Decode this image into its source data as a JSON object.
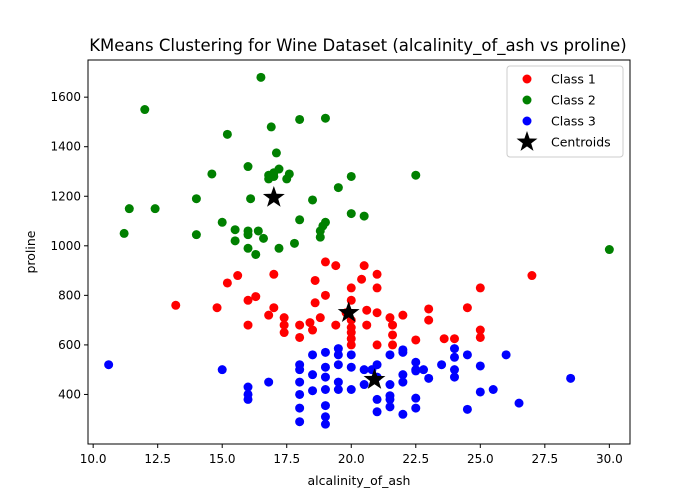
{
  "chart_data": {
    "type": "scatter",
    "title": "KMeans Clustering for Wine Dataset (alcalinity_of_ash vs proline)",
    "xlabel": "alcalinity_of_ash",
    "ylabel": "proline",
    "xlim": [
      9.8,
      30.8
    ],
    "ylim": [
      200,
      1750
    ],
    "xticks": [
      "10.0",
      "12.5",
      "15.0",
      "17.5",
      "20.0",
      "22.5",
      "25.0",
      "27.5",
      "30.0"
    ],
    "yticks": [
      "400",
      "600",
      "800",
      "1000",
      "1200",
      "1400",
      "1600"
    ],
    "grid": false,
    "legend_position": "top-right",
    "series": [
      {
        "name": "Class 1",
        "color": "#ff0000",
        "points": [
          [
            13.2,
            760
          ],
          [
            14.8,
            750
          ],
          [
            15.2,
            850
          ],
          [
            15.6,
            880
          ],
          [
            16.0,
            780
          ],
          [
            16.0,
            680
          ],
          [
            16.3,
            795
          ],
          [
            16.8,
            720
          ],
          [
            17.0,
            885
          ],
          [
            17.0,
            750
          ],
          [
            17.4,
            710
          ],
          [
            17.4,
            680
          ],
          [
            17.4,
            650
          ],
          [
            18.0,
            680
          ],
          [
            18.0,
            630
          ],
          [
            18.4,
            690
          ],
          [
            18.5,
            660
          ],
          [
            18.6,
            860
          ],
          [
            18.6,
            770
          ],
          [
            18.8,
            710
          ],
          [
            19.0,
            935
          ],
          [
            19.0,
            800
          ],
          [
            19.4,
            920
          ],
          [
            19.4,
            680
          ],
          [
            19.8,
            730
          ],
          [
            20.0,
            830
          ],
          [
            20.0,
            780
          ],
          [
            20.0,
            700
          ],
          [
            20.0,
            670
          ],
          [
            20.0,
            650
          ],
          [
            20.0,
            625
          ],
          [
            20.0,
            600
          ],
          [
            20.4,
            865
          ],
          [
            20.5,
            920
          ],
          [
            20.6,
            740
          ],
          [
            20.6,
            680
          ],
          [
            21.0,
            885
          ],
          [
            21.0,
            830
          ],
          [
            21.0,
            730
          ],
          [
            21.0,
            600
          ],
          [
            21.5,
            710
          ],
          [
            21.6,
            680
          ],
          [
            21.6,
            640
          ],
          [
            21.6,
            600
          ],
          [
            22.0,
            720
          ],
          [
            22.5,
            620
          ],
          [
            23.0,
            745
          ],
          [
            23.0,
            700
          ],
          [
            23.6,
            625
          ],
          [
            24.0,
            625
          ],
          [
            24.5,
            750
          ],
          [
            25.0,
            830
          ],
          [
            25.0,
            660
          ],
          [
            25.0,
            630
          ],
          [
            27.0,
            880
          ]
        ]
      },
      {
        "name": "Class 2",
        "color": "#008000",
        "points": [
          [
            11.2,
            1050
          ],
          [
            11.4,
            1150
          ],
          [
            12.0,
            1550
          ],
          [
            12.4,
            1150
          ],
          [
            14.0,
            1190
          ],
          [
            14.0,
            1045
          ],
          [
            14.6,
            1290
          ],
          [
            15.0,
            1095
          ],
          [
            15.2,
            1450
          ],
          [
            15.5,
            1065
          ],
          [
            15.5,
            1020
          ],
          [
            16.0,
            1320
          ],
          [
            16.0,
            1060
          ],
          [
            16.0,
            1045
          ],
          [
            16.0,
            990
          ],
          [
            16.1,
            1190
          ],
          [
            16.3,
            965
          ],
          [
            16.4,
            1060
          ],
          [
            16.5,
            1680
          ],
          [
            16.6,
            1030
          ],
          [
            16.8,
            1285
          ],
          [
            16.8,
            1270
          ],
          [
            16.9,
            1480
          ],
          [
            17.0,
            1295
          ],
          [
            17.0,
            1280
          ],
          [
            17.1,
            1375
          ],
          [
            17.2,
            1310
          ],
          [
            17.2,
            990
          ],
          [
            17.5,
            1270
          ],
          [
            17.6,
            1290
          ],
          [
            17.8,
            1010
          ],
          [
            18.0,
            1510
          ],
          [
            18.0,
            1105
          ],
          [
            18.5,
            1185
          ],
          [
            18.8,
            1035
          ],
          [
            18.8,
            1060
          ],
          [
            18.9,
            1080
          ],
          [
            19.0,
            1515
          ],
          [
            19.0,
            1095
          ],
          [
            19.5,
            1235
          ],
          [
            20.0,
            1280
          ],
          [
            20.0,
            1130
          ],
          [
            20.5,
            1120
          ],
          [
            22.5,
            1285
          ],
          [
            30.0,
            985
          ]
        ]
      },
      {
        "name": "Class 3",
        "color": "#0000ff",
        "points": [
          [
            10.6,
            520
          ],
          [
            15.0,
            500
          ],
          [
            16.0,
            430
          ],
          [
            16.0,
            400
          ],
          [
            16.0,
            380
          ],
          [
            16.8,
            450
          ],
          [
            18.0,
            520
          ],
          [
            18.0,
            500
          ],
          [
            18.0,
            450
          ],
          [
            18.0,
            400
          ],
          [
            18.0,
            345
          ],
          [
            18.0,
            290
          ],
          [
            18.5,
            560
          ],
          [
            18.5,
            480
          ],
          [
            18.5,
            415
          ],
          [
            19.0,
            570
          ],
          [
            19.0,
            510
          ],
          [
            19.0,
            470
          ],
          [
            19.0,
            420
          ],
          [
            19.0,
            355
          ],
          [
            19.0,
            310
          ],
          [
            19.0,
            280
          ],
          [
            19.5,
            585
          ],
          [
            19.5,
            560
          ],
          [
            19.5,
            520
          ],
          [
            19.5,
            450
          ],
          [
            19.5,
            420
          ],
          [
            20.0,
            560
          ],
          [
            20.0,
            510
          ],
          [
            20.0,
            420
          ],
          [
            20.5,
            500
          ],
          [
            20.5,
            440
          ],
          [
            20.8,
            500
          ],
          [
            21.0,
            520
          ],
          [
            21.0,
            470
          ],
          [
            21.0,
            380
          ],
          [
            21.0,
            330
          ],
          [
            21.5,
            560
          ],
          [
            21.5,
            440
          ],
          [
            21.5,
            395
          ],
          [
            21.5,
            380
          ],
          [
            21.5,
            350
          ],
          [
            22.0,
            580
          ],
          [
            22.0,
            570
          ],
          [
            22.0,
            480
          ],
          [
            22.0,
            450
          ],
          [
            22.0,
            320
          ],
          [
            22.5,
            530
          ],
          [
            22.5,
            500
          ],
          [
            22.5,
            495
          ],
          [
            22.5,
            385
          ],
          [
            22.5,
            345
          ],
          [
            22.8,
            500
          ],
          [
            23.0,
            465
          ],
          [
            23.5,
            520
          ],
          [
            24.0,
            585
          ],
          [
            24.0,
            550
          ],
          [
            24.0,
            500
          ],
          [
            24.0,
            470
          ],
          [
            24.5,
            560
          ],
          [
            24.5,
            340
          ],
          [
            25.0,
            515
          ],
          [
            25.0,
            410
          ],
          [
            25.5,
            420
          ],
          [
            26.0,
            560
          ],
          [
            26.5,
            365
          ],
          [
            28.5,
            465
          ]
        ]
      }
    ],
    "centroids": {
      "name": "Centroids",
      "color": "#000000",
      "points": [
        [
          17.0,
          1195
        ],
        [
          19.9,
          730
        ],
        [
          20.9,
          460
        ]
      ]
    }
  }
}
